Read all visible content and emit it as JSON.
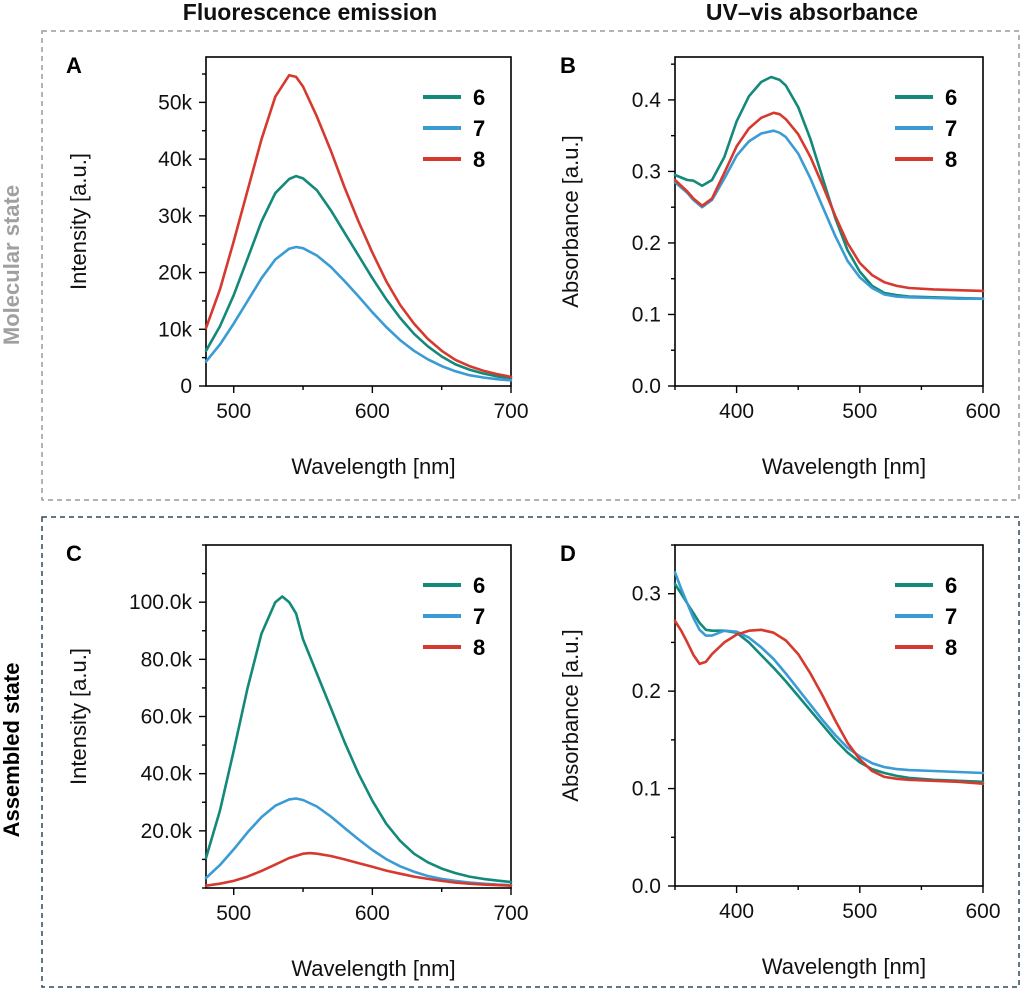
{
  "column_headers": [
    "Fluorescence emission",
    "UV–vis absorbance"
  ],
  "row_labels": [
    {
      "text": "Molecular state",
      "color": "#a0a0a0"
    },
    {
      "text": "Assembled state",
      "color": "#000000"
    }
  ],
  "frame_colors": {
    "top": "#9a9a9a",
    "bottom": "#2d4a5e"
  },
  "series_colors": {
    "6": "#13897a",
    "7": "#3a9bd5",
    "8": "#d63a2f"
  },
  "chart_data": [
    {
      "panel": "A",
      "type": "line",
      "xlabel": "Wavelength [nm]",
      "ylabel": "Intensity [a.u.]",
      "xlim": [
        480,
        700
      ],
      "ylim": [
        0,
        58000
      ],
      "xticks": [
        500,
        600,
        700
      ],
      "xtick_labels": [
        "500",
        "600",
        "700"
      ],
      "yticks": [
        0,
        10000,
        20000,
        30000,
        40000,
        50000
      ],
      "ytick_labels": [
        "0",
        "10k",
        "20k",
        "30k",
        "40k",
        "50k"
      ],
      "legend": "top-right",
      "series": [
        {
          "name": "6",
          "x": [
            480,
            490,
            500,
            510,
            520,
            530,
            540,
            545,
            550,
            560,
            570,
            580,
            590,
            600,
            610,
            620,
            630,
            640,
            650,
            660,
            670,
            680,
            690,
            700
          ],
          "y": [
            6200,
            10500,
            16000,
            22500,
            29000,
            34000,
            36500,
            37000,
            36600,
            34500,
            31000,
            27000,
            23000,
            19000,
            15300,
            12000,
            9200,
            7000,
            5200,
            3800,
            2900,
            2200,
            1700,
            1400
          ]
        },
        {
          "name": "7",
          "x": [
            480,
            490,
            500,
            510,
            520,
            530,
            540,
            545,
            550,
            560,
            570,
            580,
            590,
            600,
            610,
            620,
            630,
            640,
            650,
            660,
            670,
            680,
            690,
            700
          ],
          "y": [
            4300,
            7300,
            11000,
            15000,
            19000,
            22300,
            24200,
            24500,
            24300,
            23000,
            21000,
            18500,
            15800,
            13000,
            10400,
            8100,
            6200,
            4700,
            3500,
            2600,
            1900,
            1500,
            1200,
            1000
          ]
        },
        {
          "name": "8",
          "x": [
            480,
            490,
            500,
            510,
            520,
            530,
            540,
            545,
            550,
            560,
            570,
            580,
            590,
            600,
            610,
            620,
            630,
            640,
            650,
            660,
            670,
            680,
            690,
            700
          ],
          "y": [
            10200,
            17000,
            25500,
            34500,
            43500,
            51000,
            54800,
            54500,
            52800,
            47500,
            41500,
            35000,
            29000,
            23500,
            18500,
            14300,
            11000,
            8300,
            6200,
            4600,
            3500,
            2700,
            2100,
            1600
          ]
        }
      ]
    },
    {
      "panel": "B",
      "type": "line",
      "xlabel": "Wavelength [nm]",
      "ylabel": "Absorbance [a.u.]",
      "xlim": [
        350,
        600
      ],
      "ylim": [
        0,
        0.46
      ],
      "xticks": [
        400,
        500,
        600
      ],
      "xtick_labels": [
        "400",
        "500",
        "600"
      ],
      "yticks": [
        0,
        0.1,
        0.2,
        0.3,
        0.4
      ],
      "ytick_labels": [
        "0.0",
        "0.1",
        "0.2",
        "0.3",
        "0.4"
      ],
      "legend": "top-right",
      "series": [
        {
          "name": "6",
          "x": [
            350,
            360,
            365,
            372,
            380,
            390,
            400,
            410,
            420,
            428,
            435,
            440,
            450,
            460,
            470,
            480,
            490,
            500,
            510,
            520,
            530,
            540,
            560,
            580,
            600
          ],
          "y": [
            0.295,
            0.288,
            0.287,
            0.28,
            0.288,
            0.32,
            0.37,
            0.405,
            0.425,
            0.432,
            0.428,
            0.42,
            0.39,
            0.345,
            0.29,
            0.235,
            0.19,
            0.16,
            0.14,
            0.13,
            0.127,
            0.125,
            0.124,
            0.123,
            0.122
          ]
        },
        {
          "name": "7",
          "x": [
            350,
            360,
            365,
            372,
            380,
            390,
            400,
            410,
            420,
            430,
            435,
            440,
            450,
            460,
            470,
            480,
            490,
            500,
            510,
            520,
            530,
            540,
            560,
            580,
            600
          ],
          "y": [
            0.285,
            0.27,
            0.26,
            0.25,
            0.26,
            0.29,
            0.322,
            0.342,
            0.353,
            0.357,
            0.354,
            0.348,
            0.325,
            0.29,
            0.25,
            0.21,
            0.175,
            0.152,
            0.137,
            0.128,
            0.125,
            0.124,
            0.123,
            0.122,
            0.122
          ]
        },
        {
          "name": "8",
          "x": [
            350,
            360,
            365,
            372,
            380,
            390,
            400,
            410,
            420,
            430,
            435,
            440,
            450,
            460,
            470,
            480,
            490,
            500,
            510,
            520,
            530,
            540,
            560,
            580,
            600
          ],
          "y": [
            0.288,
            0.272,
            0.262,
            0.252,
            0.262,
            0.298,
            0.335,
            0.36,
            0.375,
            0.382,
            0.38,
            0.373,
            0.352,
            0.32,
            0.28,
            0.238,
            0.2,
            0.172,
            0.155,
            0.145,
            0.14,
            0.137,
            0.135,
            0.134,
            0.133
          ]
        }
      ]
    },
    {
      "panel": "C",
      "type": "line",
      "xlabel": "Wavelength [nm]",
      "ylabel": "Intensity [a.u.]",
      "xlim": [
        480,
        700
      ],
      "ylim": [
        0,
        120000
      ],
      "xticks": [
        500,
        600,
        700
      ],
      "xtick_labels": [
        "500",
        "600",
        "700"
      ],
      "yticks": [
        20000,
        40000,
        60000,
        80000,
        100000
      ],
      "ytick_labels": [
        "20.0k",
        "40.0k",
        "60.0k",
        "80.0k",
        "100.0k"
      ],
      "legend": "top-right",
      "series": [
        {
          "name": "6",
          "x": [
            480,
            490,
            500,
            510,
            520,
            530,
            535,
            540,
            545,
            550,
            560,
            570,
            580,
            590,
            600,
            610,
            620,
            630,
            640,
            650,
            660,
            670,
            680,
            690,
            700
          ],
          "y": [
            10500,
            27000,
            48000,
            70000,
            89000,
            100000,
            102000,
            100000,
            96000,
            87000,
            75000,
            63000,
            51000,
            40000,
            30500,
            22500,
            16500,
            12000,
            9000,
            6800,
            5200,
            4000,
            3200,
            2600,
            2100
          ]
        },
        {
          "name": "7",
          "x": [
            480,
            490,
            500,
            510,
            520,
            530,
            540,
            545,
            550,
            560,
            570,
            580,
            590,
            600,
            610,
            620,
            630,
            640,
            650,
            660,
            670,
            680,
            690,
            700
          ],
          "y": [
            3500,
            8000,
            13500,
            19500,
            24800,
            28800,
            31000,
            31300,
            30800,
            28500,
            25000,
            21000,
            17000,
            13300,
            10100,
            7600,
            5700,
            4200,
            3200,
            2500,
            1900,
            1500,
            1200,
            1000
          ]
        },
        {
          "name": "8",
          "x": [
            480,
            490,
            500,
            510,
            520,
            530,
            540,
            550,
            555,
            560,
            570,
            580,
            590,
            600,
            610,
            620,
            630,
            640,
            650,
            660,
            670,
            680,
            690,
            700
          ],
          "y": [
            800,
            1500,
            2500,
            4000,
            6000,
            8200,
            10500,
            12000,
            12200,
            12000,
            11200,
            10000,
            8700,
            7400,
            6100,
            5000,
            4000,
            3200,
            2500,
            1900,
            1500,
            1200,
            1000,
            800
          ]
        }
      ]
    },
    {
      "panel": "D",
      "type": "line",
      "xlabel": "Wavelength [nm]",
      "ylabel": "Absorbance [a.u.]",
      "xlim": [
        350,
        600
      ],
      "ylim": [
        0,
        0.35
      ],
      "xticks": [
        400,
        500,
        600
      ],
      "xtick_labels": [
        "400",
        "500",
        "600"
      ],
      "yticks": [
        0,
        0.1,
        0.2,
        0.3
      ],
      "ytick_labels": [
        "0.0",
        "0.1",
        "0.2",
        "0.3"
      ],
      "legend": "top-right",
      "series": [
        {
          "name": "6",
          "x": [
            350,
            355,
            360,
            365,
            370,
            375,
            380,
            390,
            400,
            410,
            420,
            430,
            440,
            450,
            460,
            470,
            480,
            490,
            500,
            510,
            520,
            530,
            540,
            560,
            580,
            600
          ],
          "y": [
            0.31,
            0.3,
            0.29,
            0.28,
            0.27,
            0.263,
            0.262,
            0.262,
            0.26,
            0.25,
            0.237,
            0.224,
            0.21,
            0.195,
            0.18,
            0.165,
            0.15,
            0.137,
            0.127,
            0.12,
            0.116,
            0.113,
            0.111,
            0.109,
            0.108,
            0.107
          ]
        },
        {
          "name": "7",
          "x": [
            350,
            355,
            360,
            365,
            370,
            375,
            380,
            390,
            400,
            410,
            420,
            430,
            440,
            450,
            460,
            470,
            480,
            490,
            500,
            510,
            520,
            530,
            540,
            560,
            580,
            600
          ],
          "y": [
            0.322,
            0.305,
            0.29,
            0.275,
            0.263,
            0.257,
            0.257,
            0.262,
            0.261,
            0.255,
            0.245,
            0.233,
            0.218,
            0.202,
            0.186,
            0.17,
            0.155,
            0.142,
            0.133,
            0.126,
            0.122,
            0.12,
            0.119,
            0.118,
            0.117,
            0.116
          ]
        },
        {
          "name": "8",
          "x": [
            350,
            355,
            360,
            365,
            370,
            375,
            380,
            390,
            400,
            410,
            420,
            430,
            440,
            450,
            460,
            470,
            480,
            490,
            500,
            510,
            520,
            530,
            540,
            560,
            580,
            600
          ],
          "y": [
            0.272,
            0.262,
            0.25,
            0.237,
            0.228,
            0.23,
            0.238,
            0.25,
            0.258,
            0.262,
            0.263,
            0.26,
            0.252,
            0.238,
            0.218,
            0.195,
            0.17,
            0.147,
            0.13,
            0.118,
            0.112,
            0.11,
            0.109,
            0.108,
            0.107,
            0.105
          ]
        }
      ]
    }
  ]
}
